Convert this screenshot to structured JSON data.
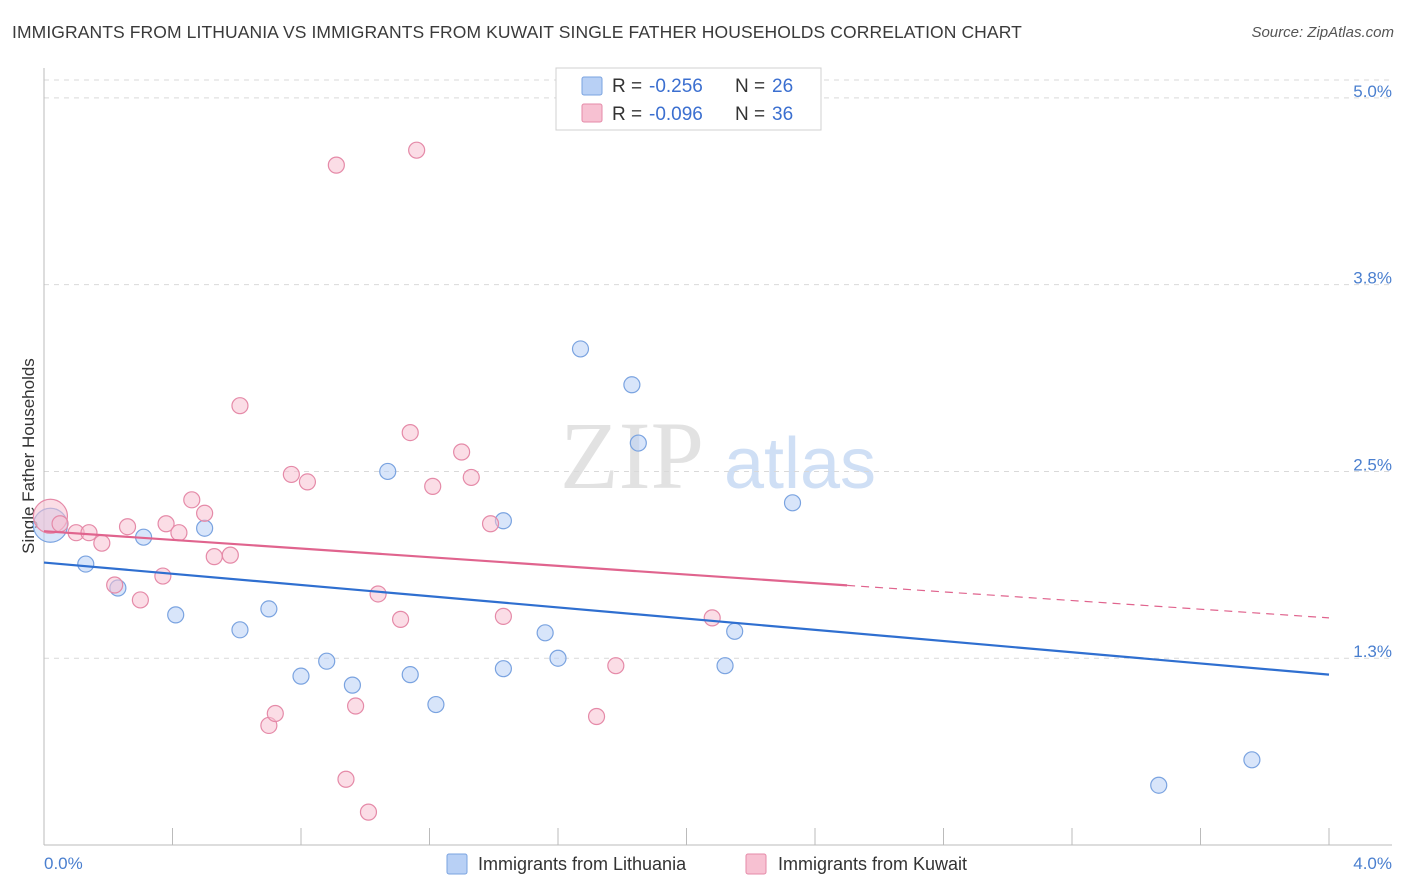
{
  "title": "IMMIGRANTS FROM LITHUANIA VS IMMIGRANTS FROM KUWAIT SINGLE FATHER HOUSEHOLDS CORRELATION CHART",
  "source": "Source: ZipAtlas.com",
  "watermark": {
    "zip": "ZIP",
    "atlas": "atlas"
  },
  "colors": {
    "lithuania_fill": "#b8d0f5",
    "lithuania_stroke": "#7aa3e0",
    "lithuania_line": "#2f6fd0",
    "kuwait_fill": "#f7c1d2",
    "kuwait_stroke": "#e58aa8",
    "kuwait_line": "#e0648e",
    "tick_label": "#4a7fcf",
    "grid": "#d9d9d9"
  },
  "legend": {
    "rows": [
      {
        "r_label": "R =",
        "r_value": "-0.256",
        "n_label": "N =",
        "n_value": "26"
      },
      {
        "r_label": "R =",
        "r_value": "-0.096",
        "n_label": "N =",
        "n_value": "36"
      }
    ]
  },
  "bottom_legend": [
    "Immigrants from Lithuania",
    "Immigrants from Kuwait"
  ],
  "chart_data": {
    "type": "scatter",
    "title": "IMMIGRANTS FROM LITHUANIA VS IMMIGRANTS FROM KUWAIT SINGLE FATHER HOUSEHOLDS CORRELATION CHART",
    "xlabel": "",
    "ylabel": "Single Father Households",
    "xlim": [
      0.0,
      4.0
    ],
    "ylim": [
      0.0,
      5.2
    ],
    "x_tick_labels": [
      "0.0%",
      "4.0%"
    ],
    "y_ticks": [
      {
        "value": 1.25,
        "label": "1.3%"
      },
      {
        "value": 2.5,
        "label": "2.5%"
      },
      {
        "value": 3.75,
        "label": "3.8%"
      },
      {
        "value": 5.0,
        "label": "5.0%"
      }
    ],
    "series": [
      {
        "name": "Immigrants from Lithuania",
        "R": -0.256,
        "N": 26,
        "trend": {
          "x0": 0.0,
          "y0": 1.89,
          "x1": 4.0,
          "y1": 1.14,
          "dashed_from": null
        },
        "points": [
          {
            "x": 0.02,
            "y": 2.14,
            "big": true
          },
          {
            "x": 0.13,
            "y": 1.88
          },
          {
            "x": 0.23,
            "y": 1.72
          },
          {
            "x": 0.31,
            "y": 2.06
          },
          {
            "x": 0.41,
            "y": 1.54
          },
          {
            "x": 0.5,
            "y": 2.12
          },
          {
            "x": 0.61,
            "y": 1.44
          },
          {
            "x": 0.7,
            "y": 1.58
          },
          {
            "x": 0.8,
            "y": 1.13
          },
          {
            "x": 0.88,
            "y": 1.23
          },
          {
            "x": 0.96,
            "y": 1.07
          },
          {
            "x": 1.07,
            "y": 2.5
          },
          {
            "x": 1.14,
            "y": 1.14
          },
          {
            "x": 1.22,
            "y": 0.94
          },
          {
            "x": 1.43,
            "y": 2.17
          },
          {
            "x": 1.43,
            "y": 1.18
          },
          {
            "x": 1.56,
            "y": 1.42
          },
          {
            "x": 1.6,
            "y": 1.25
          },
          {
            "x": 1.67,
            "y": 3.32
          },
          {
            "x": 1.83,
            "y": 3.08
          },
          {
            "x": 1.85,
            "y": 2.69
          },
          {
            "x": 2.12,
            "y": 1.2
          },
          {
            "x": 2.15,
            "y": 1.43
          },
          {
            "x": 2.33,
            "y": 2.29
          },
          {
            "x": 3.47,
            "y": 0.4
          },
          {
            "x": 3.76,
            "y": 0.57
          }
        ]
      },
      {
        "name": "Immigrants from Kuwait",
        "R": -0.096,
        "N": 36,
        "trend": {
          "x0": 0.0,
          "y0": 2.1,
          "x1": 4.0,
          "y1": 1.52,
          "dashed_from": 2.5
        },
        "points": [
          {
            "x": 0.02,
            "y": 2.2,
            "big": true
          },
          {
            "x": 0.05,
            "y": 2.15
          },
          {
            "x": 0.1,
            "y": 2.09
          },
          {
            "x": 0.14,
            "y": 2.09
          },
          {
            "x": 0.18,
            "y": 2.02
          },
          {
            "x": 0.22,
            "y": 1.74
          },
          {
            "x": 0.26,
            "y": 2.13
          },
          {
            "x": 0.3,
            "y": 1.64
          },
          {
            "x": 0.37,
            "y": 1.8
          },
          {
            "x": 0.38,
            "y": 2.15
          },
          {
            "x": 0.42,
            "y": 2.09
          },
          {
            "x": 0.46,
            "y": 2.31
          },
          {
            "x": 0.5,
            "y": 2.22
          },
          {
            "x": 0.53,
            "y": 1.93
          },
          {
            "x": 0.58,
            "y": 1.94
          },
          {
            "x": 0.61,
            "y": 2.94
          },
          {
            "x": 0.7,
            "y": 0.8
          },
          {
            "x": 0.72,
            "y": 0.88
          },
          {
            "x": 0.77,
            "y": 2.48
          },
          {
            "x": 0.82,
            "y": 2.43
          },
          {
            "x": 0.91,
            "y": 4.55
          },
          {
            "x": 0.94,
            "y": 0.44
          },
          {
            "x": 0.97,
            "y": 0.93
          },
          {
            "x": 1.01,
            "y": 0.22
          },
          {
            "x": 1.04,
            "y": 1.68
          },
          {
            "x": 1.11,
            "y": 1.51
          },
          {
            "x": 1.14,
            "y": 2.76
          },
          {
            "x": 1.16,
            "y": 4.65
          },
          {
            "x": 1.21,
            "y": 2.4
          },
          {
            "x": 1.3,
            "y": 2.63
          },
          {
            "x": 1.33,
            "y": 2.46
          },
          {
            "x": 1.39,
            "y": 2.15
          },
          {
            "x": 1.43,
            "y": 1.53
          },
          {
            "x": 1.72,
            "y": 0.86
          },
          {
            "x": 1.78,
            "y": 1.2
          },
          {
            "x": 2.08,
            "y": 1.52
          }
        ]
      }
    ]
  }
}
